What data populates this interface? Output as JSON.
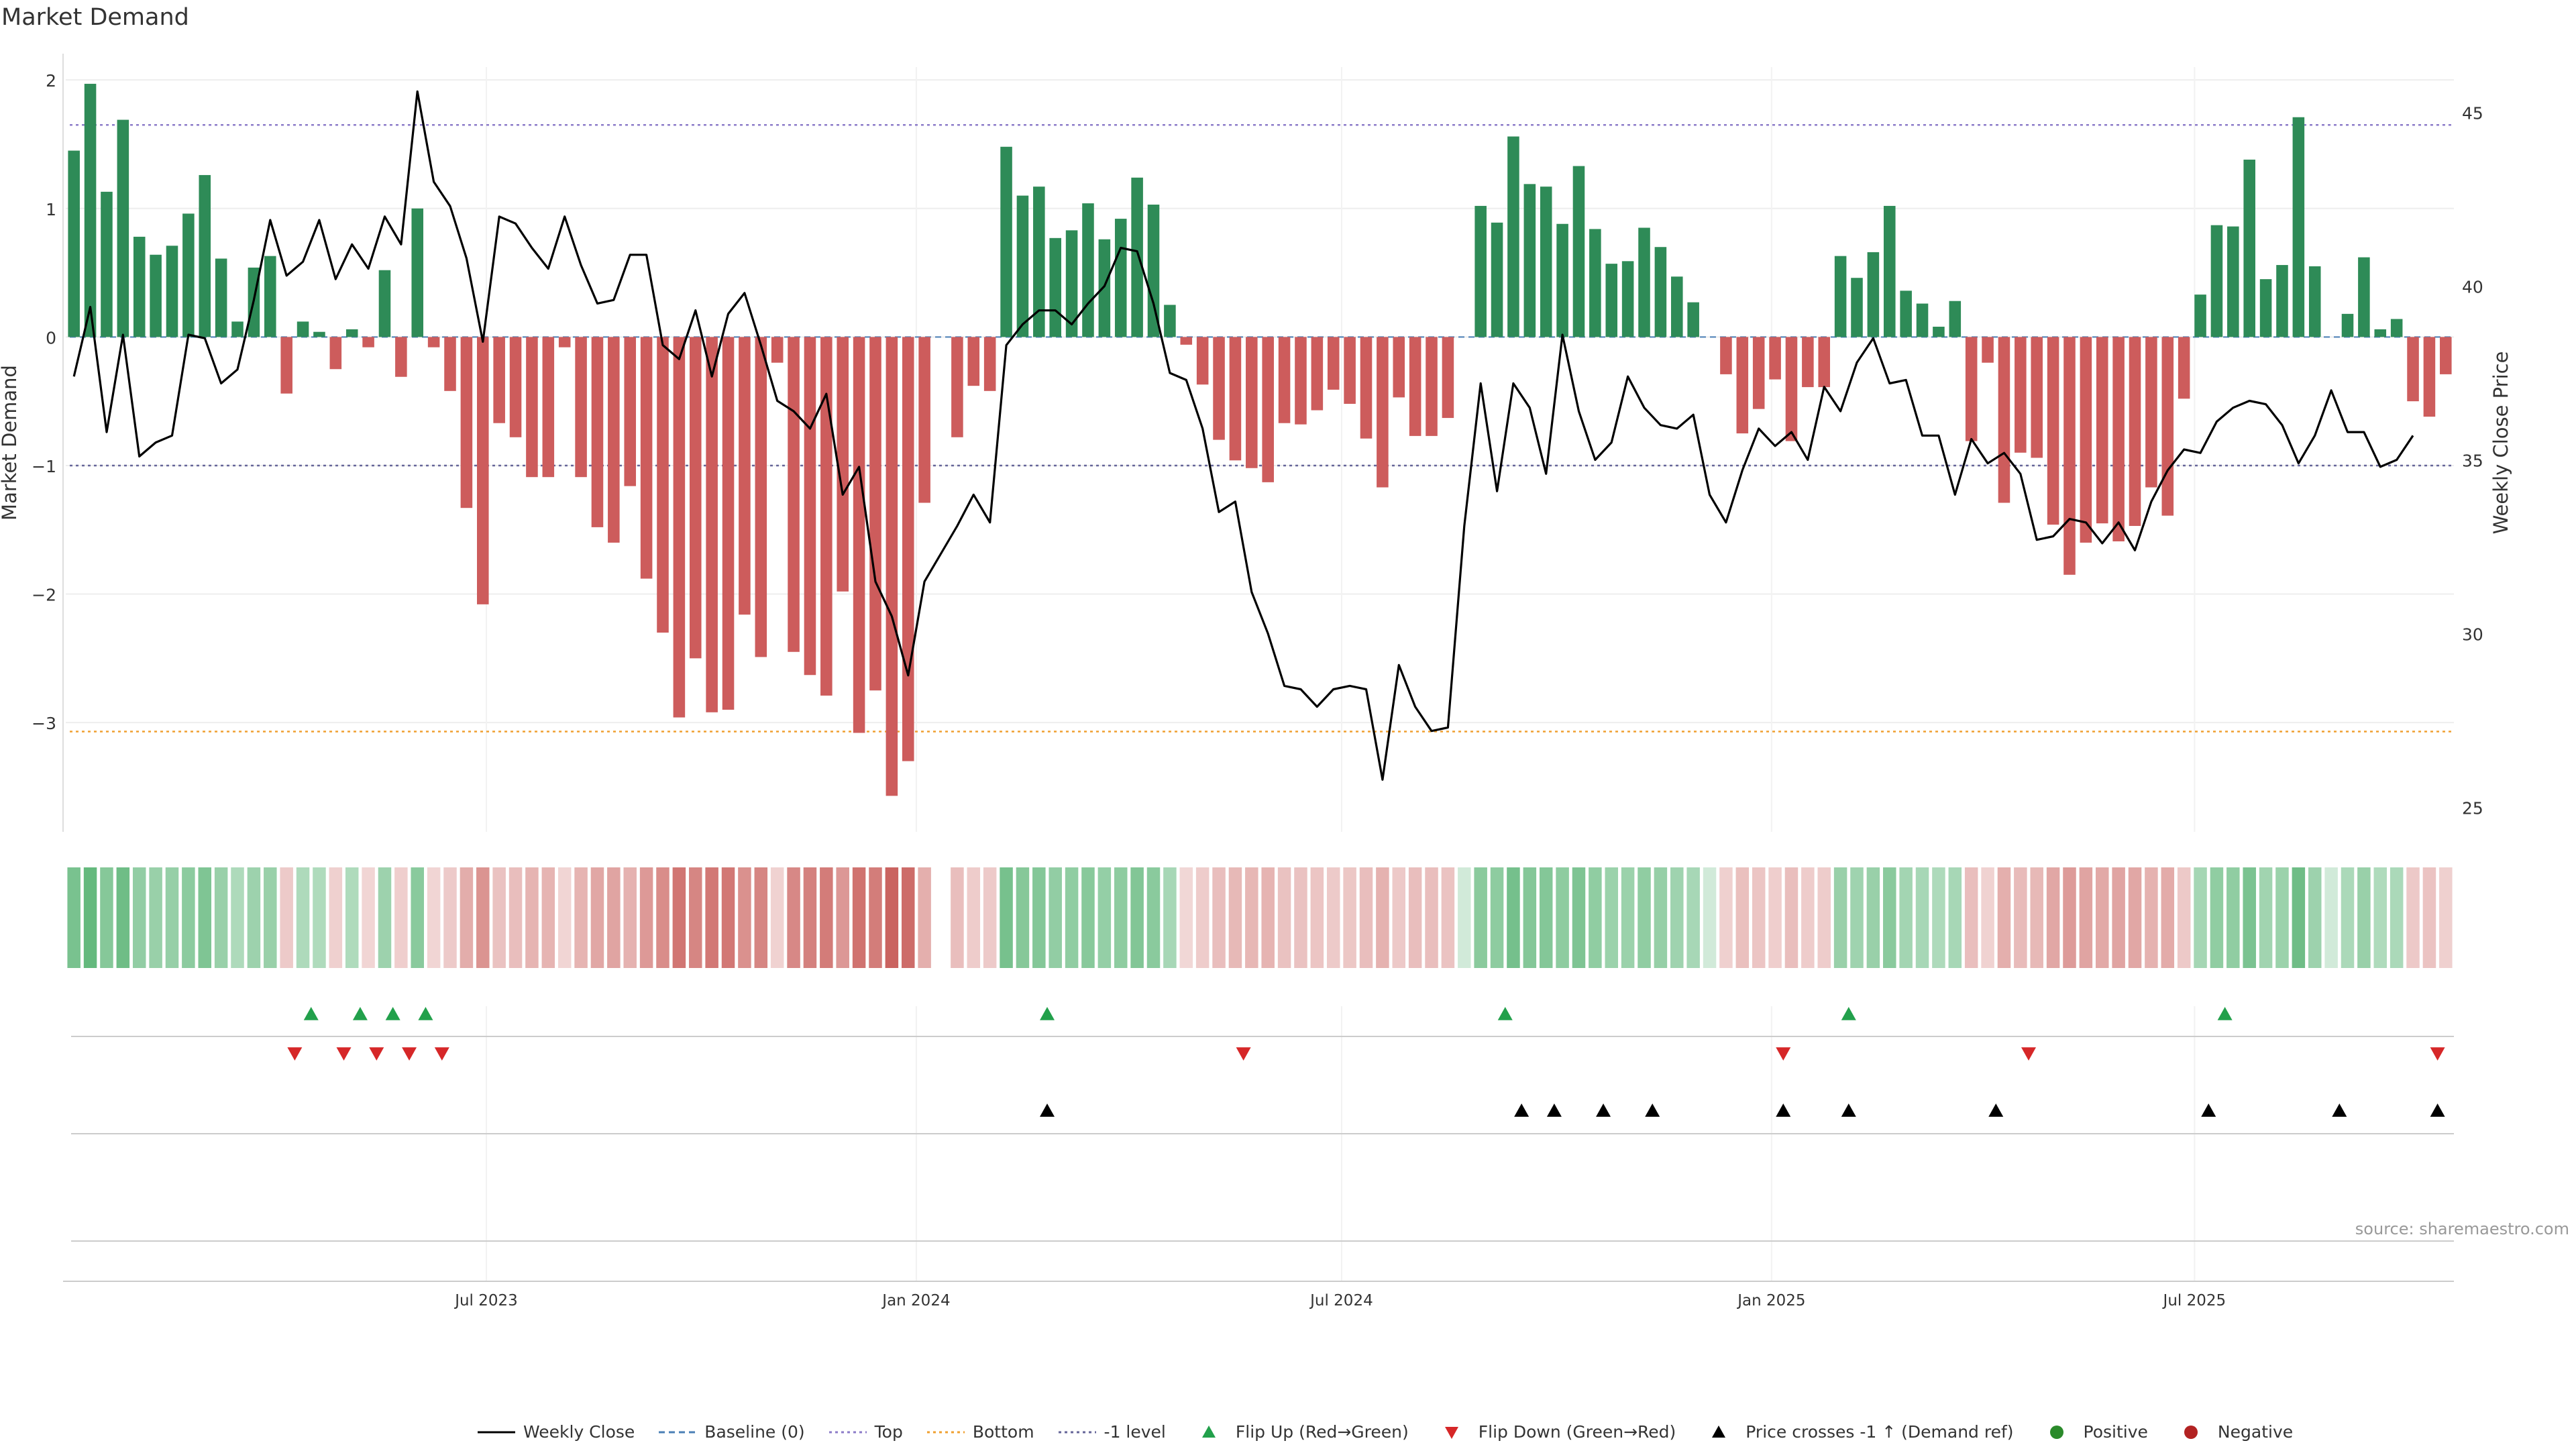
{
  "page_title": "Market Demand",
  "source": "source: sharemaestro.com",
  "colors": {
    "positive": "#2e8b57",
    "negative": "#cd5c5c",
    "close": "#000000",
    "top": "#8c7cc9",
    "bottom": "#f0a030",
    "level": "#666699",
    "flip_up": "#22a04b",
    "flip_down": "#d62728"
  },
  "chart_data": {
    "type": "bar",
    "title": "Market Demand",
    "ylabel": "Market Demand",
    "y2label": "Weekly Close Price",
    "ylim": [
      -3.85,
      2.1
    ],
    "y2lim": [
      24.3,
      46.3
    ],
    "yticks": [
      2,
      1,
      0,
      -1,
      -2,
      -3
    ],
    "yticklabels": [
      "2",
      "1",
      "0",
      "−1",
      "−2",
      "−3"
    ],
    "y2ticks": [
      45,
      40,
      35,
      30,
      25
    ],
    "x_start": "2023-01-02",
    "x_end": "2025-10-20",
    "xtick_dates": [
      "2023-07-01",
      "2024-01-01",
      "2024-07-01",
      "2025-01-01",
      "2025-07-01"
    ],
    "xtick_labels": [
      "Jul 2023",
      "Jan 2024",
      "Jul 2024",
      "Jan 2025",
      "Jul 2025"
    ],
    "levels": {
      "top": 1.65,
      "bottom": -3.07,
      "minus_one": -1.0,
      "baseline": 0
    },
    "weeks_demand": [
      1.45,
      1.97,
      1.13,
      1.69,
      0.78,
      0.64,
      0.71,
      0.96,
      1.26,
      0.61,
      0.12,
      0.54,
      0.63,
      -0.44,
      0.12,
      0.04,
      -0.25,
      0.06,
      -0.08,
      0.52,
      -0.31,
      1.0,
      -0.08,
      -0.42,
      -1.33,
      -2.08,
      -0.67,
      -0.78,
      -1.09,
      -1.09,
      -0.08,
      -1.09,
      -1.48,
      -1.6,
      -1.16,
      -1.88,
      -2.3,
      -2.96,
      -2.5,
      -2.92,
      -2.9,
      -2.16,
      -2.49,
      -0.2,
      -2.45,
      -2.63,
      -2.79,
      -1.98,
      -3.08,
      -2.75,
      -3.57,
      -3.3,
      -1.29,
      0,
      -0.78,
      -0.38,
      -0.42,
      1.48,
      1.1,
      1.17,
      0.77,
      0.83,
      1.04,
      0.76,
      0.92,
      1.24,
      1.03,
      0.25,
      -0.06,
      -0.37,
      -0.8,
      -0.96,
      -1.02,
      -1.13,
      -0.67,
      -0.68,
      -0.57,
      -0.41,
      -0.52,
      -0.79,
      -1.17,
      -0.47,
      -0.77,
      -0.77,
      -0.63,
      0,
      1.02,
      0.89,
      1.56,
      1.19,
      1.17,
      0.88,
      1.33,
      0.84,
      0.57,
      0.59,
      0.85,
      0.7,
      0.47,
      0.27,
      0,
      -0.29,
      -0.75,
      -0.56,
      -0.33,
      -0.81,
      -0.39,
      -0.39,
      0.63,
      0.46,
      0.66,
      1.02,
      0.36,
      0.26,
      0.08,
      0.28,
      -0.81,
      -0.2,
      -1.29,
      -0.9,
      -0.94,
      -1.46,
      -1.85,
      -1.6,
      -1.45,
      -1.59,
      -1.47,
      -1.17,
      -1.39,
      -0.48,
      0.33,
      0.87,
      0.86,
      1.38,
      0.45,
      0.56,
      1.71,
      0.55,
      0,
      0.18,
      0.62,
      0.06,
      0.14,
      -0.5,
      -0.62,
      -0.29
    ],
    "weekly_close": [
      37.4,
      39.4,
      35.8,
      38.6,
      35.1,
      35.5,
      35.7,
      38.6,
      38.5,
      37.2,
      37.6,
      39.6,
      41.9,
      40.3,
      40.7,
      41.9,
      40.2,
      41.2,
      40.5,
      42.0,
      41.2,
      45.6,
      43.0,
      42.3,
      40.8,
      38.4,
      42.0,
      41.8,
      41.1,
      40.5,
      42.0,
      40.6,
      39.5,
      39.6,
      40.9,
      40.9,
      38.3,
      37.9,
      39.3,
      37.4,
      39.2,
      39.8,
      38.3,
      36.7,
      36.4,
      35.9,
      36.9,
      34.0,
      34.8,
      31.5,
      30.5,
      28.8,
      31.5,
      32.3,
      33.1,
      34.0,
      33.2,
      38.3,
      38.9,
      39.3,
      39.3,
      38.9,
      39.5,
      40.0,
      41.1,
      41.0,
      39.5,
      37.5,
      37.3,
      35.9,
      33.5,
      33.8,
      31.2,
      30.0,
      28.5,
      28.4,
      27.9,
      28.4,
      28.5,
      28.4,
      25.8,
      29.1,
      27.9,
      27.2,
      27.3,
      33.1,
      37.2,
      34.1,
      37.2,
      36.5,
      34.6,
      38.6,
      36.4,
      35.0,
      35.5,
      37.4,
      36.5,
      36.0,
      35.9,
      36.3,
      34.0,
      33.2,
      34.7,
      35.9,
      35.4,
      35.8,
      35.0,
      37.1,
      36.4,
      37.8,
      38.5,
      37.2,
      37.3,
      35.7,
      35.7,
      34.0,
      35.6,
      34.9,
      35.2,
      34.6,
      32.7,
      32.8,
      33.3,
      33.2,
      32.6,
      33.2,
      32.4,
      33.8,
      34.7,
      35.3,
      35.2,
      36.1,
      36.5,
      36.7,
      36.6,
      36.0,
      34.9,
      35.7,
      37.0,
      35.8,
      35.8,
      34.8,
      35.0,
      35.7
    ],
    "gap_weeks": [
      53
    ],
    "flip_up": [
      "2023-04-17",
      "2023-05-08",
      "2023-05-22",
      "2023-06-05",
      "2024-02-26",
      "2024-09-09",
      "2025-02-03",
      "2025-07-14"
    ],
    "flip_down": [
      "2023-04-10",
      "2023-05-01",
      "2023-05-15",
      "2023-05-29",
      "2023-06-12",
      "2024-05-20",
      "2025-01-06",
      "2025-04-21",
      "2025-10-13"
    ],
    "price_crosses": [
      "2024-02-26",
      "2024-09-16",
      "2024-09-30",
      "2024-10-21",
      "2024-11-11",
      "2025-01-06",
      "2025-02-03",
      "2025-04-07",
      "2025-07-07",
      "2025-09-01",
      "2025-10-13"
    ],
    "legend": [
      {
        "label": "Weekly Close",
        "marker": "line"
      },
      {
        "label": "Baseline (0)",
        "marker": "dash"
      },
      {
        "label": "Top",
        "marker": "dot-top"
      },
      {
        "label": "Bottom",
        "marker": "dot-bottom"
      },
      {
        "label": "-1 level",
        "marker": "dot-level"
      },
      {
        "label": "Flip Up (Red→Green)",
        "marker": "tri-up-green"
      },
      {
        "label": "Flip Down (Green→Red)",
        "marker": "tri-down-red"
      },
      {
        "label": "Price crosses -1 ↑ (Demand ref)",
        "marker": "tri-up-black"
      },
      {
        "label": "Positive",
        "marker": "dot-green"
      },
      {
        "label": "Negative",
        "marker": "dot-red"
      }
    ]
  }
}
